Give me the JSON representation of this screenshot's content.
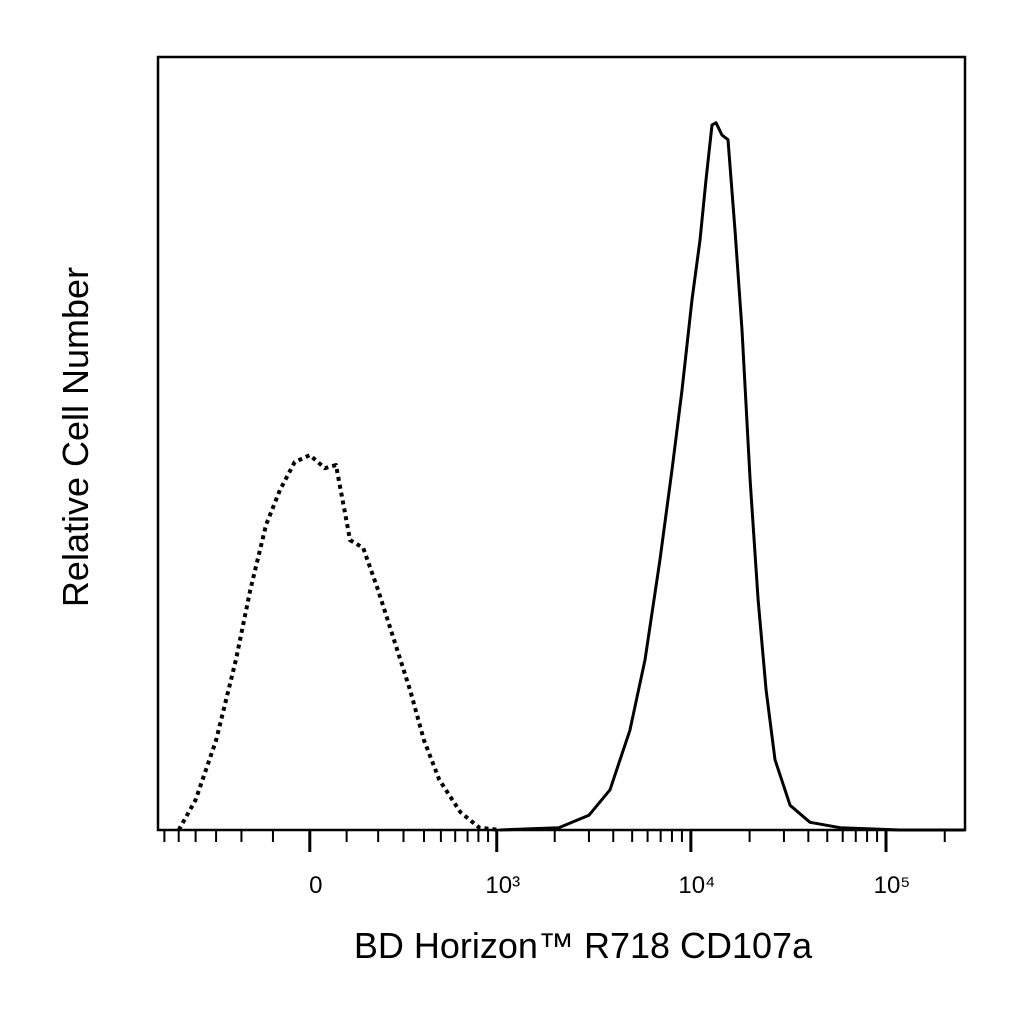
{
  "chart_data": {
    "type": "line",
    "x_label": "BD Horizon™ R718  CD107a",
    "y_label": "Relative Cell Number",
    "x_scale": "arcsinh",
    "xlim": [
      -650,
      254000
    ],
    "ylim": [
      0,
      100
    ],
    "xticks": [
      0,
      {
        "value": 1000,
        "label": "10³"
      },
      {
        "value": 10000,
        "label": "10⁴"
      },
      {
        "value": 100000,
        "label": "10⁵"
      }
    ],
    "xticks_minor": [
      -600,
      -500,
      -400,
      -300,
      -200,
      -100,
      100,
      200,
      300,
      400,
      500,
      600,
      700,
      800,
      900,
      2000,
      3000,
      4000,
      5000,
      6000,
      7000,
      8000,
      9000,
      20000,
      30000,
      40000,
      50000,
      60000,
      70000,
      80000,
      90000,
      200000
    ],
    "series": [
      {
        "color": "#000000",
        "line_style": "dotted",
        "x": [
          -500,
          -400,
          -300,
          -220,
          -170,
          -120,
          -80,
          -40,
          0,
          40,
          70,
          110,
          150,
          200,
          260,
          330,
          400,
          490,
          640,
          810,
          1040
        ],
        "values": [
          0,
          3.9,
          11.6,
          22,
          31,
          39.5,
          44,
          47.6,
          48.5,
          46.8,
          47.2,
          37.5,
          36.5,
          31,
          24.6,
          18.1,
          11.6,
          6.5,
          2.3,
          0.3,
          0
        ]
      },
      {
        "color": "#000000",
        "line_style": "solid",
        "x": [
          1040,
          2100,
          3000,
          3850,
          4870,
          5820,
          6940,
          8000,
          9010,
          10130,
          11140,
          11950,
          12830,
          13450,
          14440,
          15500,
          16840,
          18290,
          20110,
          22100,
          24290,
          26990,
          32250,
          40800,
          58160,
          118200,
          254000
        ],
        "values": [
          0,
          0.3,
          1.9,
          5.2,
          12.9,
          22,
          34.9,
          46.6,
          56.9,
          68.6,
          76.3,
          84.1,
          91.2,
          91.5,
          89.9,
          89.3,
          77.6,
          64.7,
          45.3,
          29.8,
          18.1,
          9.1,
          3.2,
          1,
          0.3,
          0,
          0
        ]
      }
    ]
  }
}
